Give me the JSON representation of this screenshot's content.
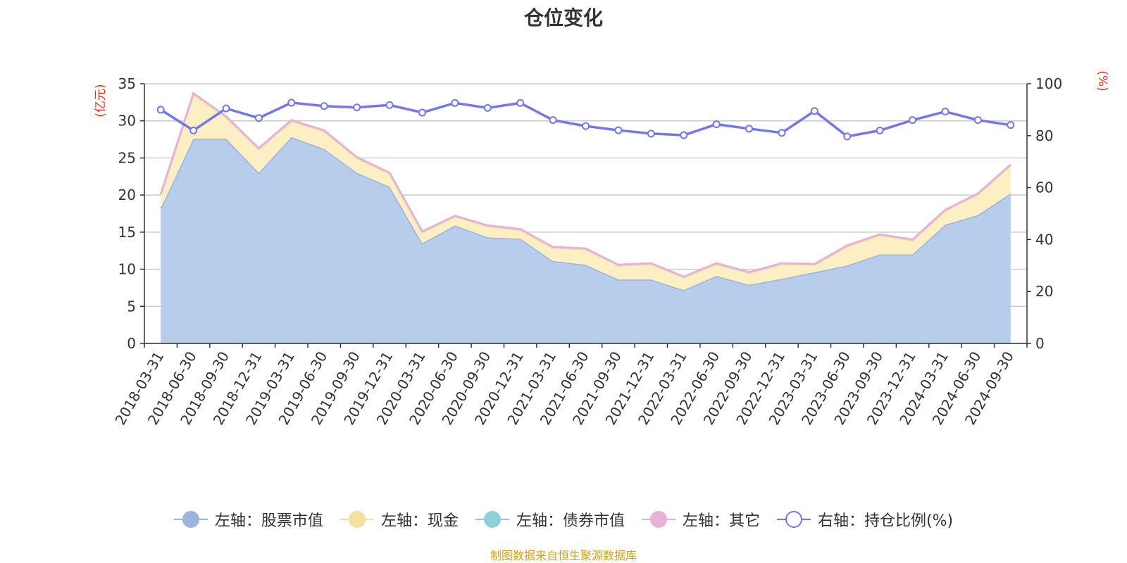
{
  "colors": {
    "stock": "#9cb4df",
    "stock_fill": "#b7cdec",
    "cash": "#f5e0a0",
    "cash_fill": "#fbefc3",
    "bond": "#8fd0d6",
    "other": "#e6b2d8",
    "ratio": "#7277ee",
    "axis_name": "#e8341c",
    "grid": "#cccccc",
    "axis": "#333333",
    "source": "#d4a017"
  },
  "chart_data": {
    "type": "area",
    "title": "仓位变化",
    "left_axis_name": "(亿元)",
    "right_axis_name": "(%)",
    "ylim_left": [
      0,
      35
    ],
    "ylim_right": [
      0,
      100
    ],
    "yticks_left": [
      "0",
      "5",
      "10",
      "15",
      "20",
      "25",
      "30",
      "35"
    ],
    "yticks_right": [
      "0",
      "20",
      "40",
      "60",
      "80",
      "100"
    ],
    "grid": true,
    "legend_position": "bottom",
    "categories": [
      "2018-03-31",
      "2018-06-30",
      "2018-09-30",
      "2018-12-31",
      "2019-03-31",
      "2019-06-30",
      "2019-09-30",
      "2019-12-31",
      "2020-03-31",
      "2020-06-30",
      "2020-09-30",
      "2020-12-31",
      "2021-03-31",
      "2021-06-30",
      "2021-09-30",
      "2021-12-31",
      "2022-03-31",
      "2022-06-30",
      "2022-09-30",
      "2022-12-31",
      "2023-03-31",
      "2023-06-30",
      "2023-09-30",
      "2023-12-31",
      "2024-03-31",
      "2024-06-30",
      "2024-09-30"
    ],
    "series": [
      {
        "name": "左轴：股票市值",
        "axis": "left",
        "stack": true,
        "values": [
          18.2,
          27.6,
          27.6,
          23.0,
          27.8,
          26.2,
          23.0,
          21.1,
          13.5,
          15.9,
          14.3,
          14.1,
          11.1,
          10.6,
          8.6,
          8.6,
          7.2,
          9.1,
          7.9,
          8.7,
          9.6,
          10.5,
          12.0,
          12.0,
          16.0,
          17.3,
          20.2
        ]
      },
      {
        "name": "左轴：现金",
        "axis": "left",
        "stack": true,
        "values": [
          1.8,
          6.0,
          2.9,
          3.2,
          2.2,
          2.4,
          2.0,
          1.8,
          1.5,
          1.2,
          1.5,
          1.2,
          1.8,
          2.1,
          1.9,
          2.1,
          1.7,
          1.6,
          1.6,
          2.0,
          1.0,
          2.6,
          2.6,
          1.9,
          1.9,
          2.8,
          3.8
        ]
      },
      {
        "name": "左轴：债券市值",
        "axis": "left",
        "stack": true,
        "values": [
          0,
          0,
          0,
          0,
          0,
          0,
          0,
          0,
          0,
          0,
          0,
          0,
          0,
          0,
          0,
          0,
          0,
          0,
          0,
          0,
          0,
          0,
          0,
          0,
          0,
          0,
          0
        ]
      },
      {
        "name": "左轴：其它",
        "axis": "left",
        "stack": true,
        "values": [
          0.1,
          0.1,
          0.1,
          0.1,
          0.1,
          0.1,
          0.1,
          0.1,
          0.1,
          0.1,
          0.1,
          0.1,
          0.1,
          0.1,
          0.1,
          0.1,
          0.1,
          0.1,
          0.1,
          0.1,
          0.1,
          0.1,
          0.1,
          0.1,
          0.1,
          0.1,
          0.1
        ]
      },
      {
        "name": "右轴：持仓比例(%)",
        "axis": "right",
        "values": [
          90.0,
          82.0,
          90.5,
          86.8,
          92.7,
          91.4,
          90.9,
          91.8,
          88.9,
          92.6,
          90.7,
          92.6,
          86.0,
          83.7,
          82.1,
          80.8,
          80.2,
          84.4,
          82.7,
          81.1,
          89.5,
          79.7,
          82.0,
          86.0,
          89.3,
          86.0,
          84.1
        ]
      }
    ]
  },
  "legend": [
    {
      "key": "stock",
      "label": "左轴：股票市值"
    },
    {
      "key": "cash",
      "label": "左轴：现金"
    },
    {
      "key": "bond",
      "label": "左轴：债券市值"
    },
    {
      "key": "other",
      "label": "左轴：其它"
    },
    {
      "key": "ratio",
      "label": "右轴：持仓比例(%)"
    }
  ],
  "source_note": "制图数据来自恒生聚源数据库"
}
